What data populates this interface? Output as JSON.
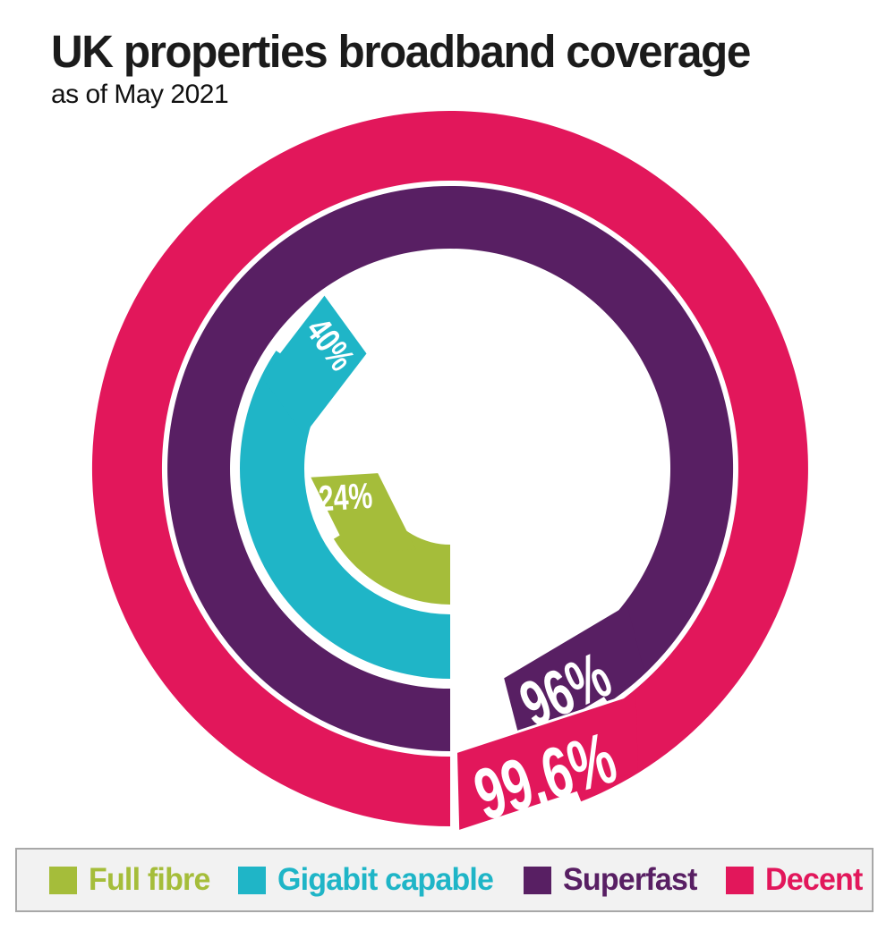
{
  "header": {
    "title": "UK properties broadband coverage",
    "subtitle": "as of May 2021"
  },
  "chart_data": {
    "type": "pie",
    "variant": "concentric-donut-rings",
    "title": "UK properties broadband coverage",
    "subtitle": "as of May 2021",
    "unit": "%",
    "start_angle_deg": 180,
    "direction": "clockwise",
    "value_range": [
      0,
      100
    ],
    "legend_position": "bottom",
    "series": [
      {
        "name": "Full fibre",
        "value": 24,
        "display_label": "24%",
        "color": "#A5BD3A",
        "ring": "innermost"
      },
      {
        "name": "Gigabit capable",
        "value": 40,
        "display_label": "40%",
        "color": "#1FB5C7",
        "ring": "second"
      },
      {
        "name": "Superfast",
        "value": 96,
        "display_label": "96%",
        "color": "#581F63",
        "ring": "third"
      },
      {
        "name": "Decent",
        "value": 99.6,
        "display_label": "99.6%",
        "color": "#E2175B",
        "ring": "outermost"
      }
    ]
  },
  "legend": {
    "items": [
      {
        "label": "Full fibre",
        "color": "#A5BD3A"
      },
      {
        "label": "Gigabit capable",
        "color": "#1FB5C7"
      },
      {
        "label": "Superfast",
        "color": "#581F63"
      },
      {
        "label": "Decent",
        "color": "#E2175B"
      }
    ]
  }
}
